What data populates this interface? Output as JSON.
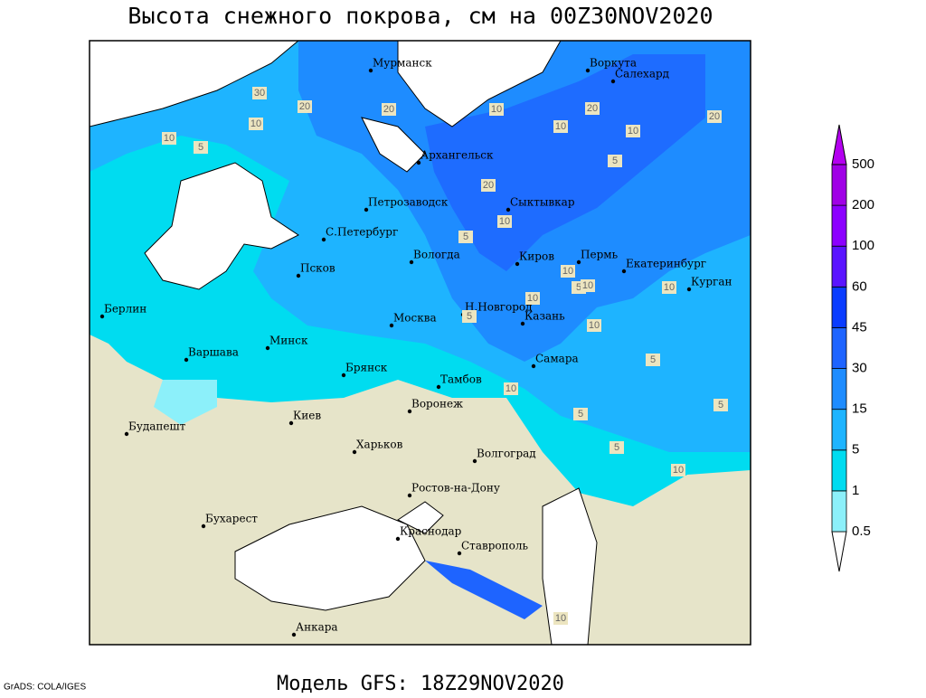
{
  "title": "Высота снежного покрова, см на 00Z30NOV2020",
  "subtitle": "Модель GFS: 18Z29NOV2020",
  "credit": "GrADS: COLA/IGES",
  "cities": [
    "Мурманск",
    "Воркута",
    "Салехард",
    "Архангельск",
    "Петрозаводск",
    "Сыктывкар",
    "С.Петербург",
    "Вологда",
    "Киров",
    "Пермь",
    "Екатеринбург",
    "Курган",
    "Псков",
    "Н.Новгород",
    "Казань",
    "Москва",
    "Берлин",
    "Варшава",
    "Минск",
    "Брянск",
    "Тамбов",
    "Самара",
    "Киев",
    "Воронеж",
    "Будапешт",
    "Харьков",
    "Волгоград",
    "Ростов-на-Дону",
    "Бухарест",
    "Краснодар",
    "Ставрополь",
    "Анкара"
  ],
  "contour_labels": [
    "30",
    "20",
    "20",
    "10",
    "10",
    "5",
    "20",
    "10",
    "20",
    "10",
    "5",
    "10",
    "20",
    "10",
    "5",
    "10",
    "5",
    "10",
    "10",
    "10",
    "5",
    "10",
    "5",
    "10",
    "5",
    "5",
    "5",
    "10",
    "10"
  ],
  "legend": {
    "levels": [
      "0.5",
      "1",
      "5",
      "15",
      "30",
      "45",
      "60",
      "100",
      "200",
      "500"
    ],
    "colors": [
      "#ffffff",
      "#8cf0fa",
      "#00dcf0",
      "#1eb4ff",
      "#1e8cff",
      "#1e64ff",
      "#0a3cff",
      "#5a14ff",
      "#8c00ff",
      "#a000e6",
      "#b400f0"
    ]
  }
}
